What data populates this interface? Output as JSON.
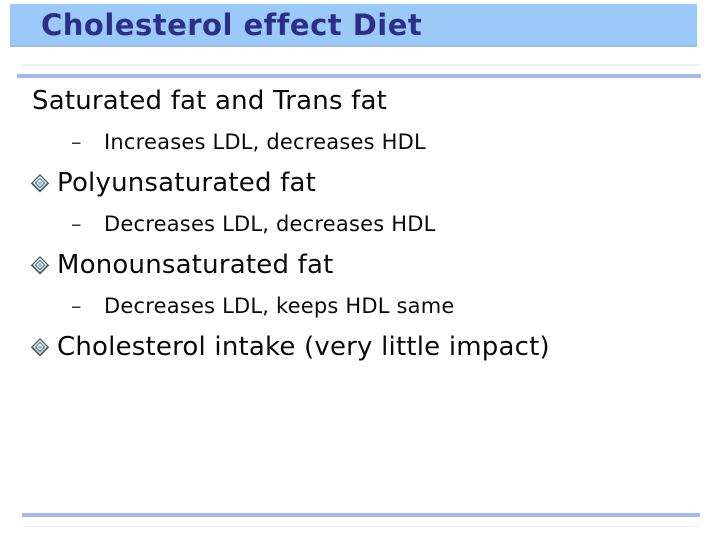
{
  "slide": {
    "title": "Cholesterol effect Diet",
    "sub_dash": "–",
    "bullets": [
      {
        "label": "Saturated fat and Trans fat",
        "sub": "Increases LDL, decreases HDL"
      },
      {
        "label": "Polyunsaturated fat",
        "sub": "Decreases LDL, decreases HDL"
      },
      {
        "label": "Monounsaturated fat",
        "sub": "Decreases LDL, keeps HDL same"
      },
      {
        "label": "Cholesterol intake (very little impact)",
        "sub": ""
      }
    ],
    "icons": {
      "bullet": "layered-diamond-icon"
    },
    "colors": {
      "header_bg": "#9BCAF8",
      "title_text": "#2D2E87",
      "divider": "#A5BAE8",
      "body_text": "#0A0A0A",
      "diamond_dark": "#44565E",
      "diamond_teal": "#64939B"
    }
  }
}
